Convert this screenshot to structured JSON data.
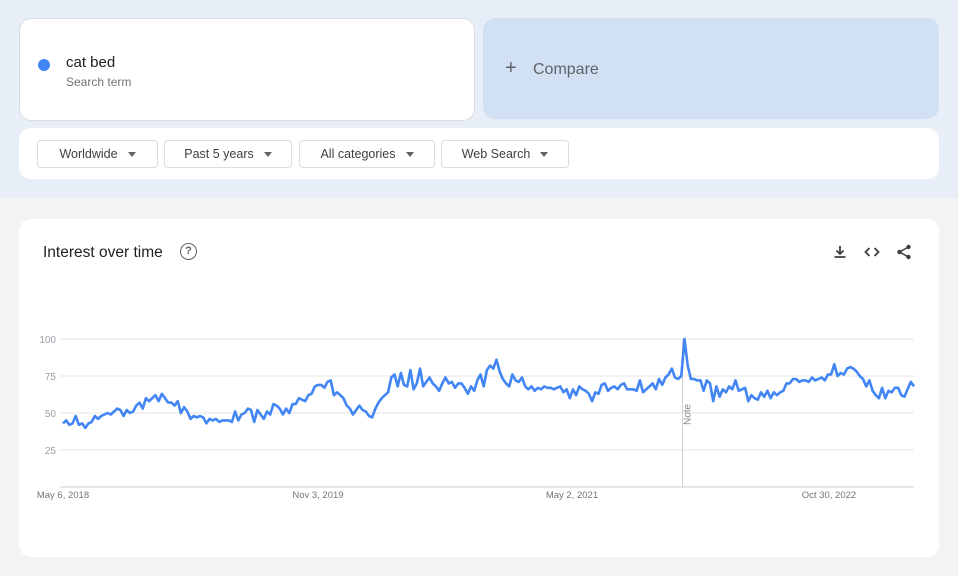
{
  "search_term": {
    "name": "cat bed",
    "subtitle": "Search term",
    "color": "#4285f4"
  },
  "compare": {
    "icon": "plus-icon",
    "label": "Compare"
  },
  "filters": [
    {
      "label": "Worldwide"
    },
    {
      "label": "Past 5 years"
    },
    {
      "label": "All categories"
    },
    {
      "label": "Web Search"
    }
  ],
  "card": {
    "title": "Interest over time",
    "help_icon": "help-circle-icon",
    "actions": [
      "download-icon",
      "embed-code-icon",
      "share-icon"
    ]
  },
  "chart_data": {
    "type": "line",
    "title": "",
    "yticks": [
      25,
      50,
      75,
      100
    ],
    "ylim": [
      0,
      100
    ],
    "xticks": [
      "May 6, 2018",
      "Nov 3, 2019",
      "May 2, 2021",
      "Oct 30, 2022"
    ],
    "note_label": "Note",
    "grid": true,
    "series": [
      {
        "color": "#4285f4",
        "values": [
          43,
          45,
          42,
          43,
          48,
          42,
          43,
          40,
          43,
          44,
          48,
          46,
          48,
          49,
          50,
          49,
          51,
          53,
          52,
          48,
          52,
          50,
          51,
          55,
          57,
          53,
          60,
          58,
          60,
          62,
          58,
          63,
          60,
          57,
          57,
          55,
          58,
          50,
          54,
          51,
          46,
          48,
          47,
          48,
          47,
          43,
          46,
          45,
          46,
          44,
          45,
          45,
          45,
          44,
          51,
          45,
          49,
          50,
          53,
          52,
          44,
          52,
          49,
          46,
          51,
          49,
          56,
          55,
          53,
          49,
          53,
          50,
          56,
          56,
          60,
          59,
          58,
          62,
          63,
          68,
          69,
          69,
          67,
          71,
          72,
          62,
          64,
          62,
          60,
          55,
          53,
          49,
          52,
          55,
          52,
          51,
          48,
          47,
          53,
          57,
          60,
          62,
          64,
          74,
          76,
          68,
          77,
          69,
          68,
          79,
          66,
          70,
          80,
          68,
          71,
          74,
          70,
          68,
          65,
          70,
          74,
          70,
          71,
          67,
          70,
          70,
          67,
          63,
          68,
          65,
          72,
          76,
          68,
          79,
          82,
          80,
          86,
          78,
          73,
          70,
          68,
          76,
          72,
          71,
          74,
          68,
          66,
          68,
          65,
          67,
          66,
          68,
          67,
          67,
          66,
          67,
          68,
          64,
          66,
          60,
          66,
          62,
          68,
          66,
          65,
          63,
          58,
          64,
          63,
          69,
          70,
          65,
          67,
          68,
          66,
          69,
          70,
          66,
          66,
          66,
          65,
          72,
          64,
          66,
          68,
          70,
          66,
          73,
          69,
          74,
          76,
          80,
          74,
          73,
          75,
          100,
          82,
          73,
          73,
          72,
          72,
          65,
          72,
          70,
          58,
          68,
          61,
          66,
          64,
          68,
          66,
          72,
          65,
          66,
          67,
          58,
          62,
          60,
          59,
          64,
          61,
          65,
          60,
          64,
          62,
          64,
          65,
          70,
          70,
          73,
          73,
          71,
          72,
          72,
          71,
          74,
          72,
          73,
          74,
          72,
          76,
          76,
          83,
          75,
          77,
          76,
          80,
          81,
          80,
          78,
          75,
          73,
          68,
          72,
          65,
          62,
          60,
          67,
          60,
          65,
          64,
          67,
          67,
          62,
          61,
          66,
          71,
          68
        ]
      }
    ]
  }
}
